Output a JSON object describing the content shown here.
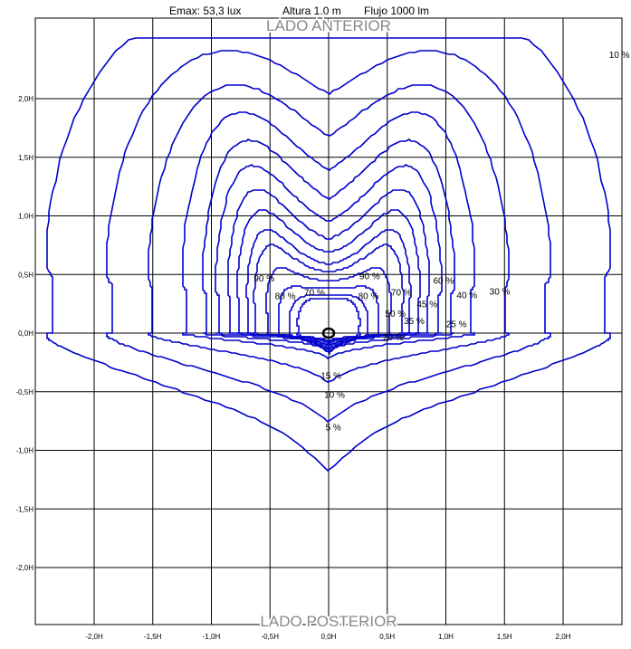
{
  "header": {
    "emax": "Emax:   53,3 lux",
    "altura": "Altura  1.0 m",
    "flujo": "Flujo  1000 lm"
  },
  "chart_data": {
    "type": "contour",
    "title": "",
    "front_label": "LADO ANTERIOR",
    "rear_label": "LADO POSTERIOR",
    "xlim": [
      -2.5,
      2.5
    ],
    "ylim": [
      -2.5,
      2.5
    ],
    "grid": true,
    "x_ticks": [
      {
        "v": -2.0,
        "label": "-2,0H"
      },
      {
        "v": -1.5,
        "label": "-1,5H"
      },
      {
        "v": -1.0,
        "label": "-1,0H"
      },
      {
        "v": -0.5,
        "label": "-0,5H"
      },
      {
        "v": 0.0,
        "label": "0,0H"
      },
      {
        "v": 0.5,
        "label": "0,5H"
      },
      {
        "v": 1.0,
        "label": "1,0H"
      },
      {
        "v": 1.5,
        "label": "1,5H"
      },
      {
        "v": 2.0,
        "label": "2,0H"
      }
    ],
    "y_ticks": [
      {
        "v": 2.0,
        "label": "2,0H"
      },
      {
        "v": 1.5,
        "label": "1,5H"
      },
      {
        "v": 1.0,
        "label": "1,0H"
      },
      {
        "v": 0.5,
        "label": "0,5H"
      },
      {
        "v": 0.0,
        "label": "0,0H"
      },
      {
        "v": -0.5,
        "label": "-0,5H"
      },
      {
        "v": -1.0,
        "label": "-1,0H"
      },
      {
        "v": -1.5,
        "label": "-1,5H"
      },
      {
        "v": -2.0,
        "label": "-2,0H"
      }
    ],
    "luminaire": {
      "x": 0.0,
      "y": 0.0
    },
    "levels": [
      {
        "pct": 90,
        "up": [
          0.48,
          0.22
        ],
        "down": [
          0.12,
          0.05
        ],
        "w": [
          0.26,
          0.85
        ],
        "cx": [
          0.13,
          0.72
        ]
      },
      {
        "pct": 80,
        "up": [
          0.56,
          0.24
        ],
        "down": [
          0.12,
          0.05
        ],
        "w": [
          0.33,
          0.95
        ],
        "cx": [
          0.14,
          0.7
        ]
      },
      {
        "pct": 70,
        "up": [
          0.66,
          0.28
        ],
        "down": [
          0.09,
          0.045
        ],
        "w": [
          0.42,
          1.02
        ],
        "cx": [
          0.15,
          0.7
        ]
      },
      {
        "pct": 60,
        "up": [
          0.78,
          0.33
        ],
        "down": [
          0.07,
          0.04
        ],
        "w": [
          0.52,
          1.08
        ],
        "cx": [
          0.16,
          0.74
        ]
      },
      {
        "pct": 50,
        "up": [
          0.9,
          0.38
        ],
        "down": [
          0.05,
          0.035
        ],
        "w": [
          0.62,
          1.15
        ],
        "cx": [
          0.17,
          0.78
        ]
      },
      {
        "pct": 45,
        "up": [
          0.98,
          0.43
        ],
        "down": [
          0.04,
          0.03
        ],
        "w": [
          0.68,
          1.18
        ],
        "cx": [
          0.18,
          0.8
        ]
      },
      {
        "pct": 40,
        "up": [
          1.08,
          0.5
        ],
        "down": [
          0.03,
          0.03
        ],
        "w": [
          0.76,
          1.22
        ],
        "cx": [
          0.19,
          0.82
        ]
      },
      {
        "pct": 35,
        "up": [
          1.2,
          0.58
        ],
        "down": [
          0.03,
          0.04
        ],
        "w": [
          0.84,
          1.26
        ],
        "cx": [
          0.2,
          0.84
        ]
      },
      {
        "pct": 30,
        "up": [
          1.34,
          0.68
        ],
        "down": [
          0.05,
          0.05
        ],
        "w": [
          0.94,
          1.3
        ],
        "cx": [
          0.2,
          0.86
        ]
      },
      {
        "pct": 25,
        "up": [
          1.5,
          0.82
        ],
        "down": [
          0.08,
          0.06
        ],
        "w": [
          1.05,
          1.36
        ],
        "cx": [
          0.21,
          0.88
        ]
      },
      {
        "pct": 20,
        "up": [
          1.68,
          0.98
        ],
        "down": [
          0.13,
          0.08
        ],
        "w": [
          1.22,
          1.44
        ],
        "cx": [
          0.22,
          0.92
        ]
      },
      {
        "pct": 15,
        "up": [
          1.86,
          1.16
        ],
        "down": [
          0.28,
          0.14
        ],
        "w": [
          1.5,
          1.55
        ],
        "cx": [
          0.22,
          0.95
        ]
      },
      {
        "pct": 10,
        "up": [
          2.1,
          1.4
        ],
        "down": [
          0.54,
          0.22
        ],
        "w": [
          1.85,
          1.7
        ],
        "cx": [
          0.23,
          1.0
        ]
      },
      {
        "pct": 5,
        "up": [
          2.45,
          1.72
        ],
        "down": [
          0.8,
          0.38
        ],
        "w": [
          2.35,
          2.0
        ],
        "cx": [
          0.24,
          1.05
        ]
      }
    ],
    "annotations": [
      {
        "text": "90 %",
        "x": -0.55,
        "y": 0.47
      },
      {
        "text": "90 %",
        "x": 0.35,
        "y": 0.49
      },
      {
        "text": "80 %",
        "x": -0.37,
        "y": 0.32
      },
      {
        "text": "70 %",
        "x": -0.12,
        "y": 0.35
      },
      {
        "text": "80 %",
        "x": 0.34,
        "y": 0.32
      },
      {
        "text": "70 %",
        "x": 0.62,
        "y": 0.35
      },
      {
        "text": "60 %",
        "x": 0.98,
        "y": 0.45
      },
      {
        "text": "40 %",
        "x": 1.18,
        "y": 0.33
      },
      {
        "text": "30 %",
        "x": 1.46,
        "y": 0.36
      },
      {
        "text": "45 %",
        "x": 0.84,
        "y": 0.25
      },
      {
        "text": "50 %",
        "x": 0.57,
        "y": 0.17
      },
      {
        "text": "35 %",
        "x": 0.73,
        "y": 0.11
      },
      {
        "text": "25 %",
        "x": 1.09,
        "y": 0.08
      },
      {
        "text": "20 %",
        "x": 0.55,
        "y": -0.03
      },
      {
        "text": "15 %",
        "x": 0.02,
        "y": -0.36
      },
      {
        "text": "10 %",
        "x": 0.05,
        "y": -0.52
      },
      {
        "text": "5 %",
        "x": 0.04,
        "y": -0.8
      },
      {
        "text": "10 %",
        "x": 2.48,
        "y": 2.38
      }
    ]
  }
}
